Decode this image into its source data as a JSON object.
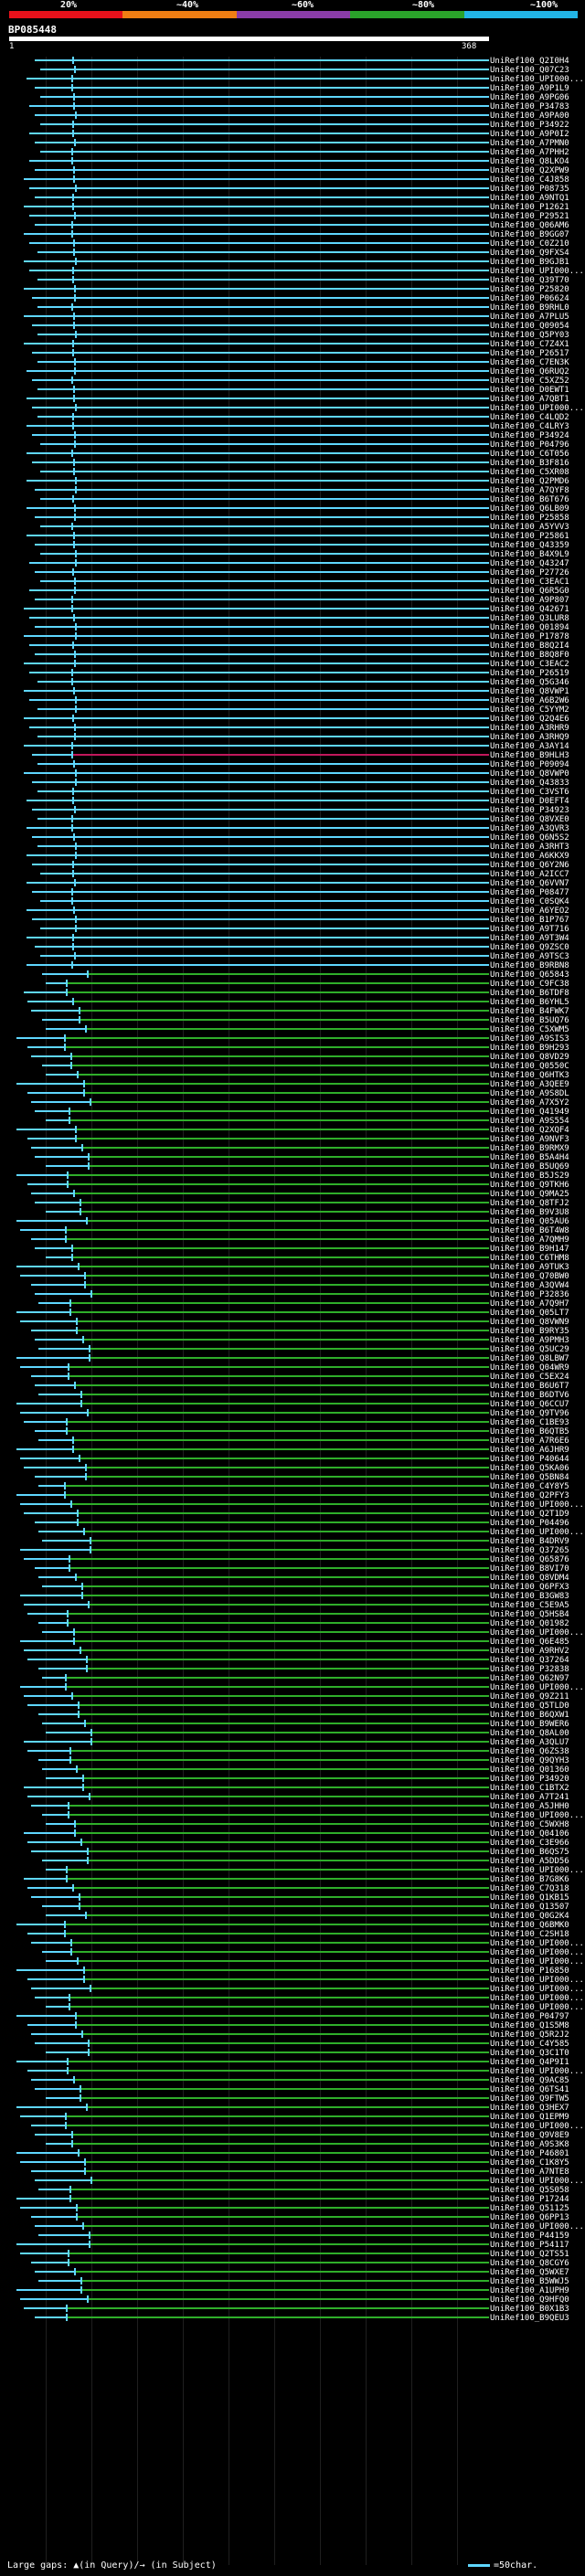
{
  "scale": {
    "labels": [
      "20%",
      "~40%",
      "~60%",
      "~80%",
      "~100%"
    ],
    "colors": [
      "#e8111b",
      "#f07e13",
      "#8a3ca8",
      "#2aa32a",
      "#22b5e6"
    ]
  },
  "query": {
    "id": "BP085448",
    "start": "1",
    "end": "368"
  },
  "legend": {
    "gaps": "Large gaps: ▲(in Query)/→ (in Subject)",
    "scale_note": "=50char."
  },
  "colors": {
    "high": "#5fd7ff",
    "mid": "#2fae2a",
    "low": "#c2185b"
  },
  "hits": [
    "UniRef100_Q2I0H4",
    "UniRef100_Q07C23",
    "UniRef100_UPI000...",
    "UniRef100_A9P1L9",
    "UniRef100_A9PG06",
    "UniRef100_P34783",
    "UniRef100_A9PA00",
    "UniRef100_P34922",
    "UniRef100_A9P0I2",
    "UniRef100_A7PMN0",
    "UniRef100_A7PHH2",
    "UniRef100_Q8LKO4",
    "UniRef100_Q2XPW9",
    "UniRef100_C4J858",
    "UniRef100_P08735",
    "UniRef100_A9NTQ1",
    "UniRef100_P12621",
    "UniRef100_P29521",
    "UniRef100_Q06AM6",
    "UniRef100_B9GG07",
    "UniRef100_C0Z210",
    "UniRef100_Q9FXS4",
    "UniRef100_B9GJB1",
    "UniRef100_UPI000...",
    "UniRef100_Q39T70",
    "UniRef100_P25820",
    "UniRef100_P06624",
    "UniRef100_B9RHL0",
    "UniRef100_A7PLU5",
    "UniRef100_Q09054",
    "UniRef100_Q5PY03",
    "UniRef100_C7Z4X1",
    "UniRef100_P26517",
    "UniRef100_C7EN3K",
    "UniRef100_Q6RUQ2",
    "UniRef100_C5XZ52",
    "UniRef100_D0EWT1",
    "UniRef100_A7QBT1",
    "UniRef100_UPI000...",
    "UniRef100_C4LQD2",
    "UniRef100_C4LRY3",
    "UniRef100_P34924",
    "UniRef100_P04796",
    "UniRef100_C6T056",
    "UniRef100_B3F816",
    "UniRef100_C5XR08",
    "UniRef100_Q2PMD6",
    "UniRef100_A7QYF8",
    "UniRef100_B6T676",
    "UniRef100_Q6LB09",
    "UniRef100_P25858",
    "UniRef100_A5YVV3",
    "UniRef100_P25861",
    "UniRef100_Q43359",
    "UniRef100_B4X9L9",
    "UniRef100_Q43247",
    "UniRef100_P27726",
    "UniRef100_C3EAC1",
    "UniRef100_Q6R5G0",
    "UniRef100_A9P807",
    "UniRef100_Q42671",
    "UniRef100_Q3LUR8",
    "UniRef100_Q01894",
    "UniRef100_P17878",
    "UniRef100_B8Q2I4",
    "UniRef100_B8Q8F0",
    "UniRef100_C3EAC2",
    "UniRef100_P26519",
    "UniRef100_Q5G346",
    "UniRef100_Q8VWP1",
    "UniRef100_A6B2W6",
    "UniRef100_C5YYM2",
    "UniRef100_Q2Q4E6",
    "UniRef100_A3RHR9",
    "UniRef100_A3RHQ9",
    "UniRef100_A3AY14",
    "UniRef100_B9HLH3",
    "UniRef100_P09094",
    "UniRef100_Q8VWP0",
    "UniRef100_Q43833",
    "UniRef100_C3VST6",
    "UniRef100_D0EFT4",
    "UniRef100_P34923",
    "UniRef100_Q8VXE0",
    "UniRef100_A3QVR3",
    "UniRef100_Q6N5S2",
    "UniRef100_A3RHT3",
    "UniRef100_A6KKX9",
    "UniRef100_Q6Y2N6",
    "UniRef100_A2ICC7",
    "UniRef100_Q6VVN7",
    "UniRef100_P08477",
    "UniRef100_C0SQK4",
    "UniRef100_A6YEO2",
    "UniRef100_B1P767",
    "UniRef100_A9T716",
    "UniRef100_A9T3W4",
    "UniRef100_Q9ZSC0",
    "UniRef100_A9TSC3",
    "UniRef100_B9RBN8",
    "UniRef100_Q65843",
    "UniRef100_C9FC38",
    "UniRef100_B6TDF8",
    "UniRef100_B6YHL5",
    "UniRef100_B4FWK7",
    "UniRef100_B5UQ76",
    "UniRef100_C5XWM5",
    "UniRef100_A9SIS3",
    "UniRef100_B9H293",
    "UniRef100_Q8VD29",
    "UniRef100_Q0550C",
    "UniRef100_Q6HTK3",
    "UniRef100_A3QEE9",
    "UniRef100_A9S8DL",
    "UniRef100_A7X5Y2",
    "UniRef100_Q41949",
    "UniRef100_A9S554",
    "UniRef100_Q2XQF4",
    "UniRef100_A9NVF3",
    "UniRef100_B9RMX9",
    "UniRef100_B5A4H4",
    "UniRef100_B5UQ69",
    "UniRef100_B5JS29",
    "UniRef100_Q9TKH6",
    "UniRef100_Q9MA25",
    "UniRef100_Q8TFJ2",
    "UniRef100_B9V3U8",
    "UniRef100_Q05AU6",
    "UniRef100_B6T4W8",
    "UniRef100_A7QMH9",
    "UniRef100_B9H147",
    "UniRef100_C6THM8",
    "UniRef100_A9TUK3",
    "UniRef100_Q70BW0",
    "UniRef100_A3QVW4",
    "UniRef100_P32836",
    "UniRef100_A7Q9H7",
    "UniRef100_Q05LT7",
    "UniRef100_Q8VWN9",
    "UniRef100_B9RY35",
    "UniRef100_A9PMH3",
    "UniRef100_Q5UC29",
    "UniRef100_Q8LBW7",
    "UniRef100_Q04WR9",
    "UniRef100_C5EX24",
    "UniRef100_B6U6T7",
    "UniRef100_B6DTV6",
    "UniRef100_Q6CCU7",
    "UniRef100_Q9TV96",
    "UniRef100_C1BE93",
    "UniRef100_B6QTB5",
    "UniRef100_A7R6E6",
    "UniRef100_A6JHR9",
    "UniRef100_P40644",
    "UniRef100_Q5KA06",
    "UniRef100_Q5BN84",
    "UniRef100_C4Y8Y5",
    "UniRef100_Q2PFY3",
    "UniRef100_UPI000...",
    "UniRef100_Q2T1D9",
    "UniRef100_P04496",
    "UniRef100_UPI000...",
    "UniRef100_B4DRV9",
    "UniRef100_Q37265",
    "UniRef100_Q65876",
    "UniRef100_B8VI70",
    "UniRef100_Q8VDM4",
    "UniRef100_Q6PFX3",
    "UniRef100_B3GW83",
    "UniRef100_C5E9A5",
    "UniRef100_Q5HSB4",
    "UniRef100_Q01982",
    "UniRef100_UPI000...",
    "UniRef100_Q6E485",
    "UniRef100_A9RHV2",
    "UniRef100_Q37264",
    "UniRef100_P32838",
    "UniRef100_Q62N97",
    "UniRef100_UPI000...",
    "UniRef100_Q9Z211",
    "UniRef100_Q5TLD0",
    "UniRef100_B6QXW1",
    "UniRef100_B9WER6",
    "UniRef100_Q8AL00",
    "UniRef100_A3QLU7",
    "UniRef100_Q6ZS38",
    "UniRef100_Q9QYH3",
    "UniRef100_Q01360",
    "UniRef100_P34920",
    "UniRef100_C1BTX2",
    "UniRef100_A7T241",
    "UniRef100_A5JHH0",
    "UniRef100_UPI000...",
    "UniRef100_C5WXH8",
    "UniRef100_Q04106",
    "UniRef100_C3E966",
    "UniRef100_B6QS75",
    "UniRef100_A5DD56",
    "UniRef100_UPI000...",
    "UniRef100_B7G8K6",
    "UniRef100_C7Q318",
    "UniRef100_Q1KB15",
    "UniRef100_Q13507",
    "UniRef100_Q0G2K4",
    "UniRef100_Q6BMK0",
    "UniRef100_C2SH18",
    "UniRef100_UPI000...",
    "UniRef100_UPI000...",
    "UniRef100_UPI000...",
    "UniRef100_P16850",
    "UniRef100_UPI000...",
    "UniRef100_UPI000...",
    "UniRef100_UPI000...",
    "UniRef100_UPI000...",
    "UniRef100_P04797",
    "UniRef100_Q1S5M8",
    "UniRef100_Q5R2J2",
    "UniRef100_C4Y585",
    "UniRef100_Q3C1T0",
    "UniRef100_Q4P9I1",
    "UniRef100_UPI000...",
    "UniRef100_Q9AC85",
    "UniRef100_Q6TS41",
    "UniRef100_Q9FTW5",
    "UniRef100_Q3HEX7",
    "UniRef100_Q1EPM9",
    "UniRef100_UPI000...",
    "UniRef100_Q9V8E9",
    "UniRef100_A9S3K8",
    "UniRef100_P46801",
    "UniRef100_C1K8Y5",
    "UniRef100_A7NTE8",
    "UniRef100_UPI000...",
    "UniRef100_Q5S058",
    "UniRef100_P17244",
    "UniRef100_Q51125",
    "UniRef100_Q6PP13",
    "UniRef100_UPI000...",
    "UniRef100_P44159",
    "UniRef100_P54117",
    "UniRef100_Q2TS51",
    "UniRef100_Q8CGY6",
    "UniRef100_Q5WXE7",
    "UniRef100_B5WWJ5",
    "UniRef100_A1UPH9",
    "UniRef100_Q9HFQ0",
    "UniRef100_B0X1B3",
    "UniRef100_B9QEU3"
  ]
}
